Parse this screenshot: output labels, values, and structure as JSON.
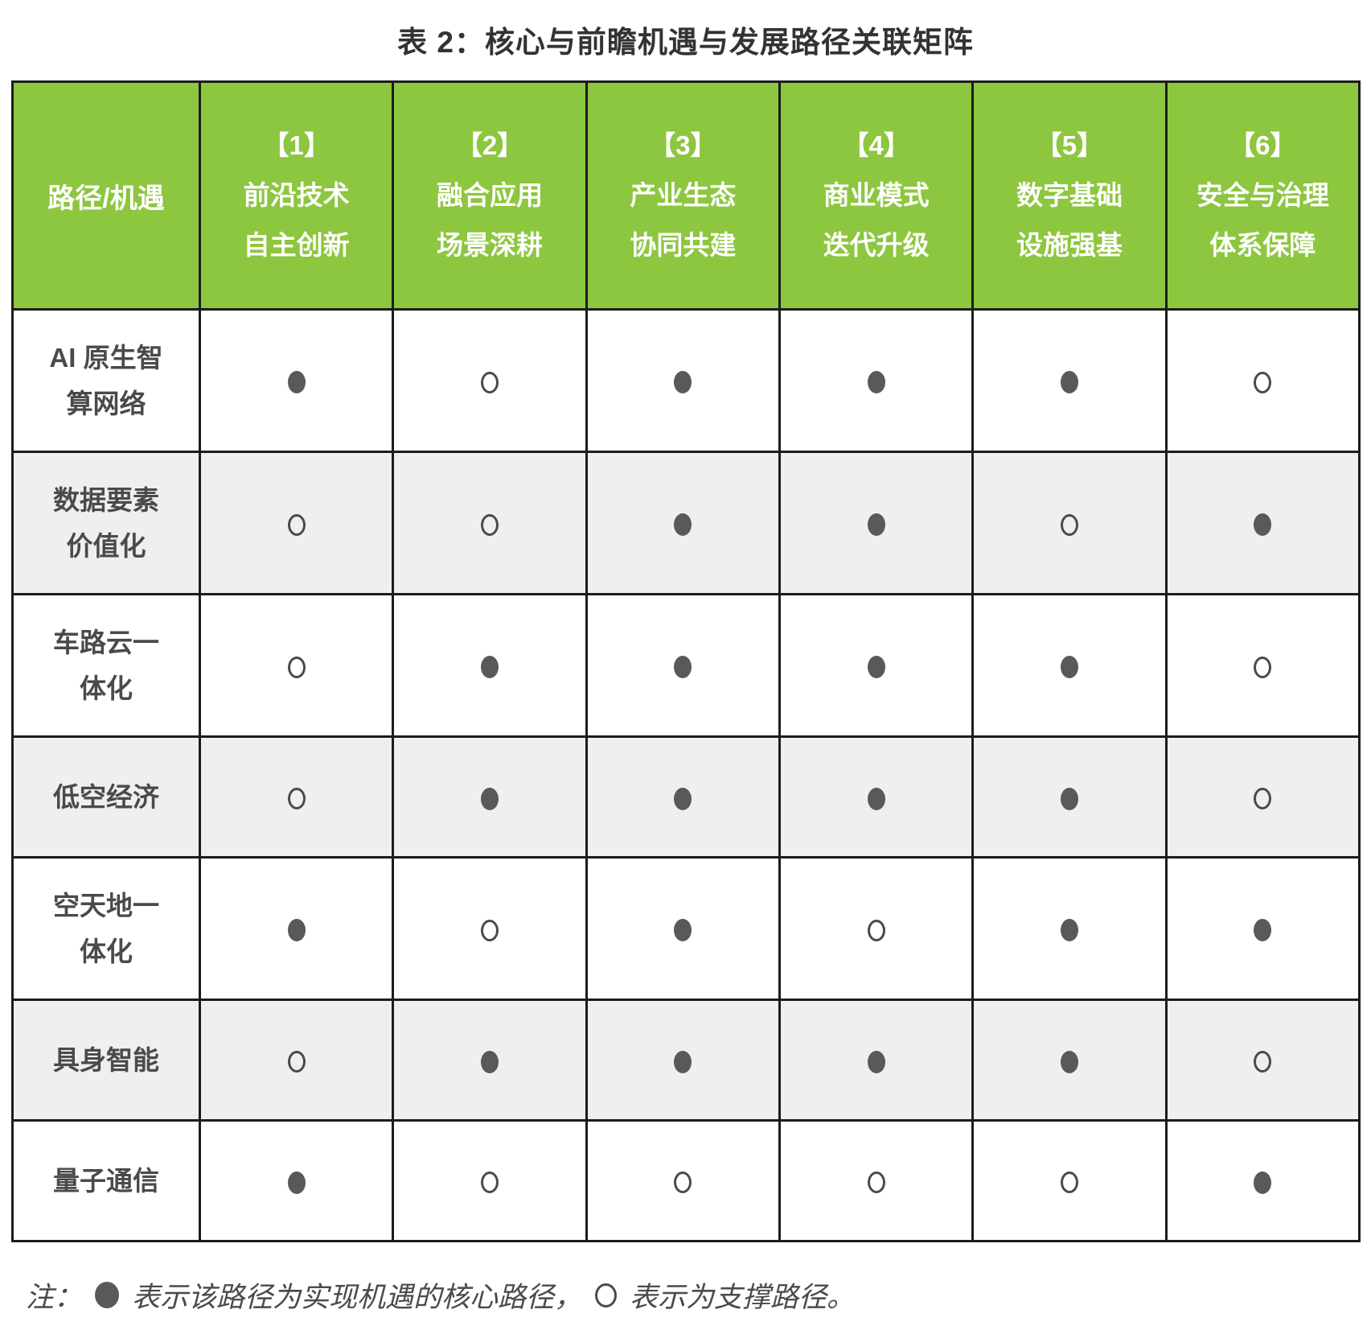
{
  "title": "表 2：核心与前瞻机遇与发展路径关联矩阵",
  "matrix": {
    "corner_header": "路径/机遇",
    "columns": [
      {
        "number": "【1】",
        "lines": [
          "前沿技术",
          "自主创新"
        ]
      },
      {
        "number": "【2】",
        "lines": [
          "融合应用",
          "场景深耕"
        ]
      },
      {
        "number": "【3】",
        "lines": [
          "产业生态",
          "协同共建"
        ]
      },
      {
        "number": "【4】",
        "lines": [
          "商业模式",
          "迭代升级"
        ]
      },
      {
        "number": "【5】",
        "lines": [
          "数字基础",
          "设施强基"
        ]
      },
      {
        "number": "【6】",
        "lines": [
          "安全与治理",
          "体系保障"
        ]
      }
    ],
    "rows": [
      {
        "label_lines": [
          "AI 原生智",
          "算网络"
        ],
        "cells": [
          "●",
          "○",
          "●",
          "●",
          "●",
          "○"
        ]
      },
      {
        "label_lines": [
          "数据要素",
          "价值化"
        ],
        "cells": [
          "○",
          "○",
          "●",
          "●",
          "○",
          "●"
        ]
      },
      {
        "label_lines": [
          "车路云一",
          "体化"
        ],
        "cells": [
          "○",
          "●",
          "●",
          "●",
          "●",
          "○"
        ]
      },
      {
        "label_lines": [
          "低空经济"
        ],
        "cells": [
          "○",
          "●",
          "●",
          "●",
          "●",
          "○"
        ]
      },
      {
        "label_lines": [
          "空天地一",
          "体化"
        ],
        "cells": [
          "●",
          "○",
          "●",
          "○",
          "●",
          "●"
        ]
      },
      {
        "label_lines": [
          "具身智能"
        ],
        "cells": [
          "○",
          "●",
          "●",
          "●",
          "●",
          "○"
        ]
      },
      {
        "label_lines": [
          "量子通信"
        ],
        "cells": [
          "●",
          "○",
          "○",
          "○",
          "○",
          "●"
        ]
      }
    ]
  },
  "note": {
    "prefix": "注：",
    "core_marker": "●",
    "core_text": "表示该路径为实现机遇的核心路径，",
    "support_marker": "○",
    "support_text": "表示为支撑路径。"
  },
  "colors": {
    "header_bg": "#8dc63f",
    "header_text": "#ffffff",
    "stripe_bg": "#efefef",
    "border": "#1c1c1c",
    "marker": "#595959",
    "title_text": "#333333",
    "body_text": "#4a4a4a"
  }
}
